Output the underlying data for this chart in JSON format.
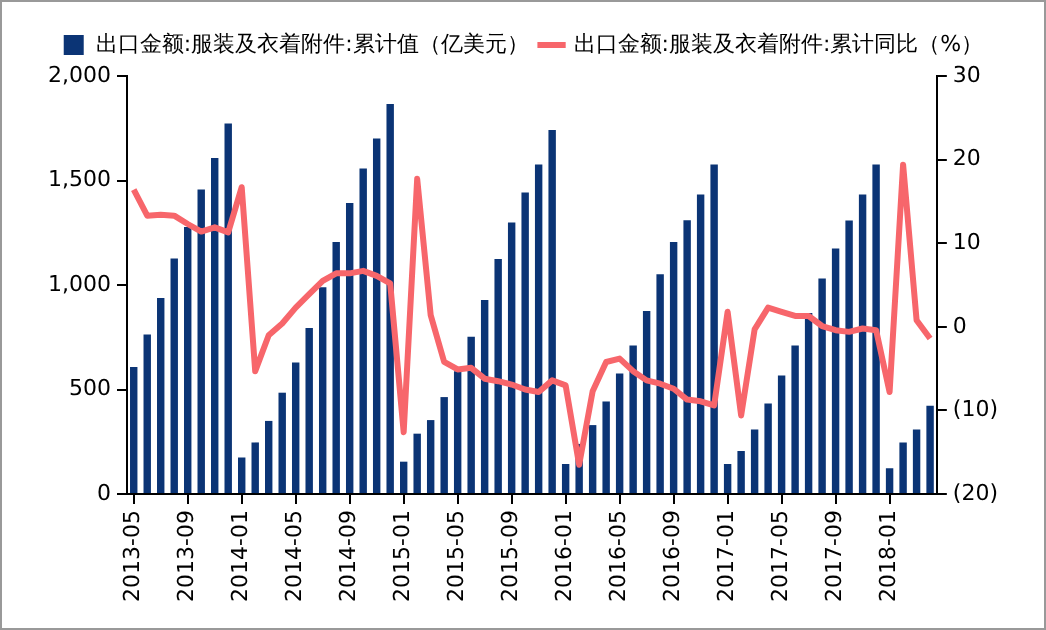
{
  "chart_data": {
    "type": "bar",
    "categories": [
      "2013-05",
      null,
      null,
      null,
      "2013-09",
      null,
      null,
      null,
      "2014-01",
      null,
      null,
      null,
      "2014-05",
      null,
      null,
      null,
      "2014-09",
      null,
      null,
      null,
      "2015-01",
      null,
      null,
      null,
      "2015-05",
      null,
      null,
      null,
      "2015-09",
      null,
      null,
      null,
      "2016-01",
      null,
      null,
      null,
      "2016-05",
      null,
      null,
      null,
      "2016-09",
      null,
      null,
      null,
      "2017-01",
      null,
      null,
      null,
      "2017-05",
      null,
      null,
      null,
      "2017-09",
      null,
      null,
      null,
      "2018-01",
      null,
      null,
      null
    ],
    "series": [
      {
        "name": "出口金额:服装及衣着附件:累计值（亿美元）",
        "color": "#0b3475",
        "values": [
          608,
          763,
          938,
          1127,
          1278,
          1457,
          1608,
          1773,
          175,
          247,
          350,
          485,
          629,
          794,
          990,
          1206,
          1392,
          1557,
          1701,
          1866,
          155,
          289,
          354,
          464,
          588,
          753,
          928,
          1124,
          1299,
          1443,
          1577,
          1742,
          144,
          240,
          330,
          443,
          577,
          711,
          876,
          1052,
          1206,
          1310,
          1433,
          1577,
          144,
          206,
          309,
          433,
          567,
          711,
          866,
          1031,
          1175,
          1309,
          1433,
          1577,
          124,
          247,
          309,
          423
        ]
      },
      {
        "name": "出口金额:服装及衣着附件:累计同比（%）",
        "type": "line",
        "axis": "y2",
        "color": "#f7666b",
        "values": [
          16.4,
          13.3,
          13.4,
          13.3,
          12.3,
          11.4,
          11.9,
          11.3,
          16.7,
          -5.3,
          -1.0,
          0.4,
          2.3,
          3.9,
          5.5,
          6.4,
          6.4,
          6.7,
          6.1,
          5.2,
          -12.6,
          17.7,
          1.4,
          -4.2,
          -5.1,
          -4.9,
          -6.2,
          -6.5,
          -6.9,
          -7.5,
          -7.8,
          -6.4,
          -7.0,
          -16.5,
          -7.7,
          -4.2,
          -3.8,
          -5.3,
          -6.4,
          -6.8,
          -7.4,
          -8.7,
          -8.9,
          -9.4,
          1.8,
          -10.6,
          -0.3,
          2.3,
          1.8,
          1.3,
          1.3,
          0.1,
          -0.4,
          -0.6,
          -0.2,
          -0.4,
          -7.8,
          19.4,
          0.8,
          -1.4
        ]
      }
    ],
    "ylim": [
      0,
      2000
    ],
    "yticks": [
      0,
      500,
      {
        "value": 1000,
        "label": "1,000"
      },
      {
        "value": 1500,
        "label": "1,500"
      },
      {
        "value": 2000,
        "label": "2,000"
      }
    ],
    "y2lim": [
      -20,
      30
    ],
    "y2ticks": [
      {
        "value": -20,
        "label": "(20)"
      },
      {
        "value": -10,
        "label": "(10)"
      },
      0,
      10,
      20,
      30
    ],
    "legend": "top",
    "grid": false,
    "marker": "none",
    "line_style": "solid"
  }
}
